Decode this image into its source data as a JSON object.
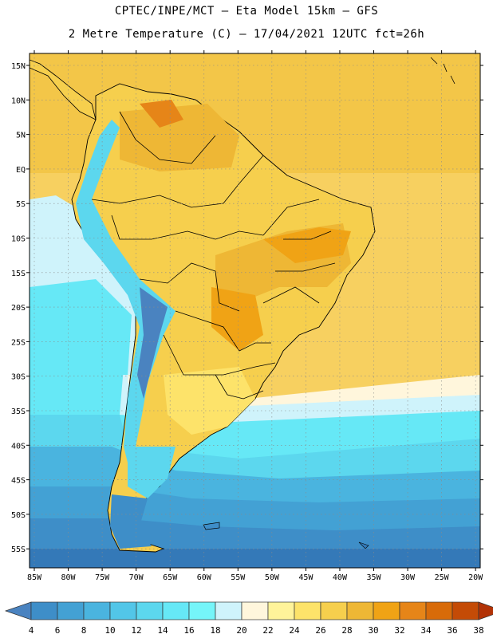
{
  "header": {
    "title_line1": "CPTEC/INPE/MCT –  Eta Model 15km – GFS",
    "title_line2": "2 Metre Temperature (C) – 17/04/2021 12UTC fct=26h"
  },
  "map": {
    "region": "South America",
    "lat_labels": [
      "15N",
      "10N",
      "5N",
      "EQ",
      "5S",
      "10S",
      "15S",
      "20S",
      "25S",
      "30S",
      "35S",
      "40S",
      "45S",
      "50S",
      "55S"
    ],
    "lon_labels": [
      "85W",
      "80W",
      "75W",
      "70W",
      "65W",
      "60W",
      "55W",
      "50W",
      "45W",
      "40W",
      "35W",
      "30W",
      "25W",
      "20W"
    ],
    "ocean_color": "#f7d060"
  },
  "colorbar": {
    "labels": [
      "4",
      "6",
      "8",
      "10",
      "12",
      "14",
      "16",
      "18",
      "20",
      "22",
      "24",
      "26",
      "28",
      "30",
      "32",
      "34",
      "36",
      "38"
    ],
    "colors": [
      "#4a83c0",
      "#3e8ec8",
      "#43a1d4",
      "#4ab4df",
      "#52c6e8",
      "#5cd7ee",
      "#66e8f6",
      "#75f5f9",
      "#cff3fb",
      "#fff6dc",
      "#fff39a",
      "#fde36a",
      "#f6cf4d",
      "#eeb735",
      "#f0a315",
      "#e68518",
      "#d86b09",
      "#c44b06",
      "#b23206"
    ]
  }
}
